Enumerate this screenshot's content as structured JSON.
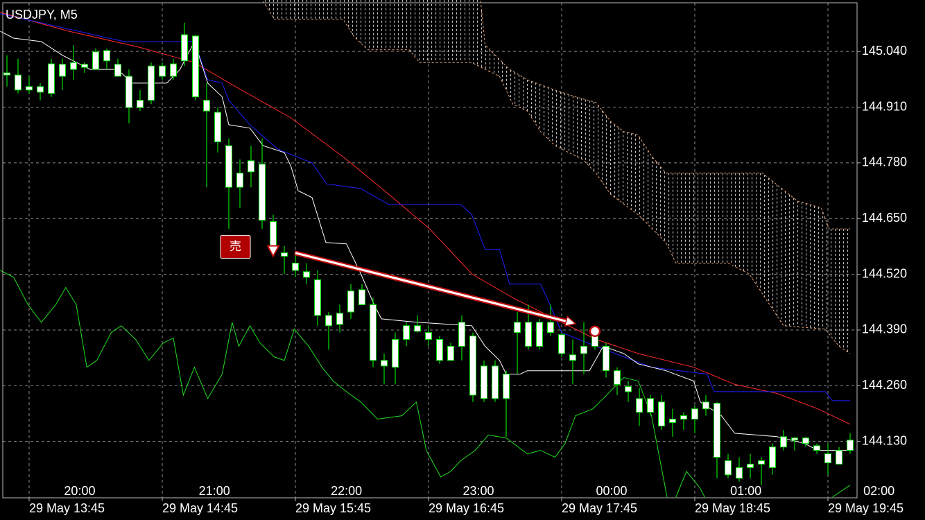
{
  "chart_data": {
    "type": "candlestick",
    "title": "USDJPY, M5",
    "open": [
      144.99,
      144.985,
      144.958,
      144.958,
      145.011,
      145.01,
      145.014,
      145.01,
      145.039,
      145.042,
      145.01,
      144.982,
      144.926,
      145.006,
      145.006,
      145.011,
      145.079,
      145.076,
      144.926,
      144.898,
      144.82,
      144.756,
      144.785,
      144.777,
      144.643,
      144.57,
      144.546,
      144.526,
      144.507,
      144.424,
      144.429,
      144.481,
      144.484,
      144.449,
      144.319,
      144.368,
      144.4,
      144.4,
      144.384,
      144.368,
      144.352,
      144.408,
      144.376,
      144.306,
      144.306,
      144.287,
      144.408,
      144.408,
      144.408,
      144.408,
      144.379,
      144.332,
      144.352,
      144.392,
      144.352,
      144.295,
      144.258,
      144.23,
      144.23,
      144.222,
      144.182,
      144.19,
      144.206,
      144.222,
      144.219,
      144.085,
      144.069,
      144.077,
      144.085,
      144.117,
      144.141,
      144.138,
      144.138,
      144.12,
      144.101,
      144.109,
      144.133
    ],
    "high": [
      145.031,
      145.023,
      144.982,
      144.966,
      145.023,
      145.023,
      145.055,
      145.014,
      145.047,
      145.047,
      145.023,
      144.998,
      144.95,
      145.014,
      145.014,
      145.023,
      145.107,
      145.079,
      144.966,
      144.909,
      144.837,
      144.788,
      144.82,
      144.837,
      144.659,
      144.586,
      144.57,
      144.546,
      144.529,
      144.432,
      144.449,
      144.497,
      144.497,
      144.465,
      144.335,
      144.384,
      144.408,
      144.424,
      144.4,
      144.376,
      144.36,
      144.424,
      144.384,
      144.319,
      144.319,
      144.295,
      144.432,
      144.449,
      144.416,
      144.449,
      144.384,
      144.368,
      144.408,
      144.4,
      144.36,
      144.303,
      144.271,
      144.255,
      144.238,
      144.238,
      144.206,
      144.198,
      144.214,
      144.238,
      144.222,
      144.101,
      144.093,
      144.101,
      144.093,
      144.125,
      144.157,
      144.141,
      144.141,
      144.125,
      144.125,
      144.117,
      144.149
    ],
    "low": [
      144.958,
      144.942,
      144.942,
      144.926,
      144.934,
      144.95,
      144.974,
      144.99,
      144.998,
      144.998,
      144.982,
      144.872,
      144.901,
      144.917,
      144.974,
      144.974,
      145.006,
      144.926,
      144.723,
      144.804,
      144.626,
      144.675,
      144.723,
      144.626,
      144.57,
      144.521,
      144.513,
      144.497,
      144.4,
      144.344,
      144.384,
      144.416,
      144.449,
      144.303,
      144.263,
      144.263,
      144.352,
      144.384,
      144.352,
      144.311,
      144.319,
      144.319,
      144.222,
      144.222,
      144.222,
      144.141,
      144.287,
      144.344,
      144.344,
      144.376,
      144.327,
      144.263,
      144.287,
      144.344,
      144.279,
      144.238,
      144.222,
      144.166,
      144.19,
      144.157,
      144.141,
      144.157,
      144.149,
      144.19,
      144.044,
      144.044,
      144.036,
      144.044,
      144.028,
      144.052,
      144.109,
      144.109,
      144.117,
      144.101,
      144.052,
      144.077,
      144.101
    ],
    "close": [
      144.985,
      144.95,
      144.95,
      144.945,
      144.942,
      144.982,
      144.998,
      145.003,
      144.998,
      145.018,
      144.982,
      144.909,
      144.909,
      144.926,
      144.982,
      144.982,
      145.018,
      144.934,
      144.901,
      144.829,
      144.723,
      144.723,
      144.759,
      144.646,
      144.586,
      144.562,
      144.529,
      144.513,
      144.424,
      144.4,
      144.403,
      144.432,
      144.449,
      144.319,
      144.306,
      144.303,
      144.368,
      144.387,
      144.368,
      144.319,
      144.319,
      144.352,
      144.238,
      144.23,
      144.23,
      144.23,
      144.384,
      144.352,
      144.352,
      144.384,
      144.335,
      144.319,
      144.335,
      144.352,
      144.295,
      144.263,
      144.246,
      144.198,
      144.198,
      144.166,
      144.174,
      144.182,
      144.182,
      144.206,
      144.093,
      144.052,
      144.044,
      144.069,
      144.077,
      144.069,
      144.117,
      144.133,
      144.125,
      144.109,
      144.08,
      144.077,
      144.109
    ],
    "body_color": "#ffffff",
    "wick_color": "#00e000",
    "lines": [
      {
        "color": "#ff2a2a",
        "x": [
          -0.6,
          5.6,
          11.9,
          16.9,
          20.6,
          25.6,
          30.6,
          34.4,
          38.1,
          41.9,
          45.6,
          49.4,
          53.1,
          56.9,
          61.9,
          65.6,
          69.4,
          73.1,
          76
        ],
        "values": [
          145.131,
          145.087,
          145.05,
          145.014,
          144.958,
          144.885,
          144.788,
          144.707,
          144.626,
          144.521,
          144.465,
          144.416,
          144.368,
          144.335,
          144.303,
          144.263,
          144.242,
          144.206,
          144.17
        ]
      },
      {
        "color": "#2020ff",
        "x": [
          -0.6,
          10.6,
          16.9,
          18.1,
          19.4,
          20,
          21.9,
          24.4,
          27.5,
          28.8,
          31.9,
          34.4,
          40.9,
          41.9,
          43.1,
          44.4,
          45.3,
          48.1,
          49.1,
          50,
          53.1,
          58.1,
          63.1,
          63.75,
          73.75,
          74.4,
          76
        ],
        "values": [
          145.128,
          145.063,
          145.063,
          144.974,
          144.966,
          144.926,
          144.869,
          144.812,
          144.78,
          144.731,
          144.72,
          144.683,
          144.683,
          144.659,
          144.578,
          144.578,
          144.497,
          144.497,
          144.44,
          144.384,
          144.352,
          144.303,
          144.287,
          144.246,
          144.246,
          144.225,
          144.225
        ]
      },
      {
        "color": "#ffffff",
        "x": [
          -0.6,
          0.6,
          3.1,
          5,
          7.5,
          10,
          11.25,
          14.4,
          15.6,
          16.9,
          18.1,
          19.4,
          20,
          21.9,
          23.1,
          25,
          25.6,
          26.25,
          27.5,
          28.75,
          30.6,
          31.9,
          33.1,
          33.75,
          36.9,
          41.9,
          43.1,
          44.4,
          45,
          46.25,
          46.9,
          52.5,
          53.75,
          55.6,
          56.9,
          59.4,
          61.9,
          62.5,
          64.4,
          65.6,
          69.4,
          71.9,
          73.1,
          76
        ],
        "values": [
          145.087,
          145.071,
          145.063,
          145.031,
          144.998,
          144.998,
          144.966,
          144.966,
          144.998,
          145.063,
          144.966,
          144.934,
          144.869,
          144.861,
          144.82,
          144.804,
          144.772,
          144.715,
          144.699,
          144.594,
          144.591,
          144.521,
          144.449,
          144.416,
          144.408,
          144.4,
          144.352,
          144.319,
          144.287,
          144.287,
          144.295,
          144.295,
          144.352,
          144.335,
          144.311,
          144.295,
          144.271,
          144.222,
          144.19,
          144.149,
          144.141,
          144.125,
          144.109,
          144.109
        ]
      },
      {
        "color": "#22dd22",
        "x": [
          -0.6,
          0.6,
          1.9,
          3.1,
          4.4,
          5.3,
          6.25,
          7.2,
          8.1,
          9.4,
          10.3,
          11.6,
          12.8,
          14.1,
          15,
          15.9,
          16.9,
          18.1,
          19.4,
          20.3,
          20.9,
          21.9,
          22.8,
          24.1,
          25,
          25.9,
          27.2,
          28.4,
          29.4,
          30.6,
          31.9,
          33.4,
          35.6,
          36.9,
          37.8,
          39.1,
          40,
          40.9,
          42.2,
          43.4,
          45,
          46.9,
          48.1,
          49.4,
          50.3,
          51.25,
          52.8,
          53.75,
          55.6,
          56.9,
          58.1,
          59.5,
          null,
          60.3,
          61.25,
          62.5,
          62.9,
          null,
          74.4,
          76
        ],
        "values": [
          144.529,
          144.513,
          144.449,
          144.408,
          144.449,
          144.489,
          144.449,
          144.303,
          144.319,
          144.384,
          144.4,
          144.368,
          144.319,
          144.36,
          144.371,
          144.238,
          144.303,
          144.23,
          144.287,
          144.408,
          144.352,
          144.4,
          144.36,
          144.327,
          144.319,
          144.392,
          144.352,
          144.303,
          144.271,
          144.246,
          144.222,
          144.182,
          144.19,
          144.222,
          144.109,
          144.047,
          144.06,
          144.085,
          144.109,
          144.145,
          144.138,
          144.101,
          144.109,
          144.093,
          144.125,
          144.19,
          144.206,
          144.23,
          144.279,
          144.271,
          144.19,
          144.0,
          null,
          144.0,
          144.06,
          144.02,
          144.0,
          null,
          144.0,
          144.028
        ]
      }
    ],
    "cloud": {
      "color": "#e8a070",
      "hatch_color": "#ffffff",
      "series": [
        {
          "x": [
            23.1,
            42.5,
            43.1,
            45.3,
            46.9,
            49.4,
            51.25,
            53.1,
            54.4,
            55.6,
            56.9,
            58.1,
            59.4,
            68.1,
            71.25,
            73.4,
            74.1,
            76
          ],
          "values": [
            145.209,
            145.209,
            145.055,
            144.998,
            144.974,
            144.95,
            144.934,
            144.921,
            144.877,
            144.853,
            144.845,
            144.796,
            144.756,
            144.756,
            144.691,
            144.675,
            144.626,
            144.626
          ]
        },
        {
          "x": [
            23.1,
            24.1,
            30.3,
            31.25,
            32.5,
            36.25,
            37.2,
            41.9,
            43.1,
            44.4,
            45.6,
            46.9,
            48.1,
            49.4,
            51.9,
            53.1,
            54.4,
            56.9,
            59.4,
            60.3,
            65,
            66.9,
            68.75,
            70,
            73.75,
            75,
            76
          ],
          "values": [
            145.157,
            145.115,
            145.115,
            145.076,
            145.044,
            145.044,
            145.014,
            145.014,
            144.998,
            144.982,
            144.917,
            144.901,
            144.853,
            144.82,
            144.788,
            144.756,
            144.707,
            144.659,
            144.594,
            144.546,
            144.546,
            144.521,
            144.449,
            144.4,
            144.392,
            144.352,
            144.335
          ]
        }
      ]
    },
    "trade": {
      "label": "売",
      "entry_x": 24,
      "entry_price": 144.575,
      "exit_x": 53,
      "exit_price": 144.387
    },
    "xlim": [
      -0.625,
      76.625
    ],
    "ylim": [
      144.0,
      145.16
    ],
    "yticks": [
      {
        "value": 145.04,
        "label": "145.040"
      },
      {
        "value": 144.91,
        "label": "144.910"
      },
      {
        "value": 144.78,
        "label": "144.780"
      },
      {
        "value": 144.65,
        "label": "144.650"
      },
      {
        "value": 144.52,
        "label": "144.520"
      },
      {
        "value": 144.39,
        "label": "144.390"
      },
      {
        "value": 144.26,
        "label": "144.260"
      },
      {
        "value": 144.13,
        "label": "144.130"
      }
    ],
    "xticks": [
      {
        "value": 2,
        "label": "29 May 13:45"
      },
      {
        "value": 14,
        "label": "29 May 14:45"
      },
      {
        "value": 26,
        "label": "29 May 15:45"
      },
      {
        "value": 38,
        "label": "29 May 16:45"
      },
      {
        "value": 50,
        "label": "29 May 17:45"
      },
      {
        "value": 62,
        "label": "29 May 18:45"
      },
      {
        "value": 74,
        "label": "29 May 19:45"
      }
    ],
    "x2ticks": [
      {
        "value": 6.56,
        "label": "20:00"
      },
      {
        "value": 18.7,
        "label": "21:00"
      },
      {
        "value": 30.6,
        "label": "22:00"
      },
      {
        "value": 42.5,
        "label": "23:00"
      },
      {
        "value": 54.5,
        "label": "00:00"
      },
      {
        "value": 66.6,
        "label": "01:00"
      },
      {
        "value": 78.6,
        "label": "02:00"
      }
    ],
    "grid": true,
    "grid_color": "#8a8a8a"
  }
}
